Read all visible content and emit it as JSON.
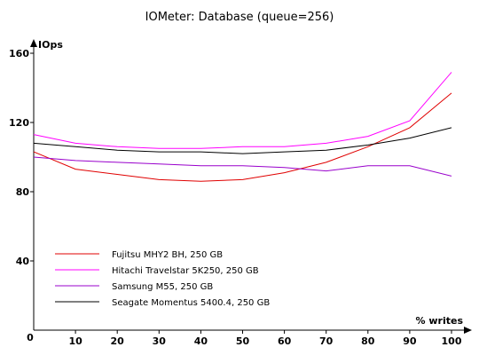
{
  "chart_data": {
    "type": "line",
    "title": "IOMeter: Database (queue=256)",
    "ylabel": "IOps",
    "xlabel": "% writes",
    "x": [
      0,
      10,
      20,
      30,
      40,
      50,
      60,
      70,
      80,
      90,
      100
    ],
    "xlim": [
      0,
      100
    ],
    "ylim": [
      0,
      160
    ],
    "x_ticks": [
      "0",
      "10",
      "20",
      "30",
      "40",
      "50",
      "60",
      "70",
      "80",
      "90",
      "100"
    ],
    "y_ticks": [
      "40",
      "80",
      "120",
      "160"
    ],
    "grid": false,
    "legend_position": "bottom-left",
    "series": [
      {
        "name": "Fujitsu MHY2 BH, 250 GB",
        "color": "#e00000",
        "values": [
          103,
          93,
          90,
          87,
          86,
          87,
          91,
          97,
          106,
          117,
          137
        ]
      },
      {
        "name": "Hitachi Travelstar 5K250, 250 GB",
        "color": "#ff00ff",
        "values": [
          113,
          108,
          106,
          105,
          105,
          106,
          106,
          108,
          112,
          121,
          149
        ]
      },
      {
        "name": "Samsung M55, 250 GB",
        "color": "#9900cc",
        "values": [
          100,
          98,
          97,
          96,
          95,
          95,
          94,
          92,
          95,
          95,
          89
        ]
      },
      {
        "name": "Seagate Momentus 5400.4, 250 GB",
        "color": "#000000",
        "values": [
          108,
          106,
          104,
          103,
          103,
          102,
          103,
          104,
          107,
          111,
          117
        ]
      }
    ]
  }
}
